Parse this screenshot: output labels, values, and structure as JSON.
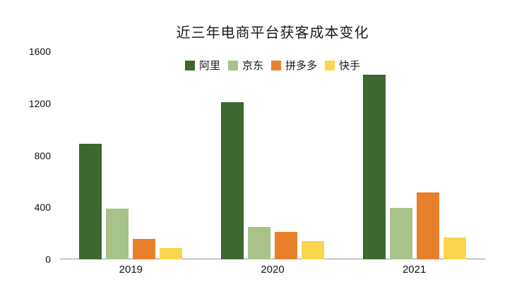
{
  "title": "近三年电商平台获客成本变化",
  "chart_data": {
    "type": "bar",
    "title": "近三年电商平台获客成本变化",
    "categories": [
      "2019",
      "2020",
      "2021"
    ],
    "series": [
      {
        "name": "阿里",
        "color": "#3d682f",
        "values": [
          890,
          1210,
          1420
        ]
      },
      {
        "name": "京东",
        "color": "#a7c389",
        "values": [
          390,
          250,
          395
        ]
      },
      {
        "name": "拼多多",
        "color": "#e8802b",
        "values": [
          160,
          210,
          515
        ]
      },
      {
        "name": "快手",
        "color": "#f9d64e",
        "values": [
          85,
          140,
          170
        ]
      }
    ],
    "xlabel": "",
    "ylabel": "",
    "ylim": [
      0,
      1600
    ],
    "yticks": [
      0,
      400,
      800,
      1200,
      1600
    ],
    "grid": false,
    "legend_position": "top-center",
    "axis_color": "#979797",
    "text_color": "#1a1a1a",
    "background_color": "#ffffff"
  }
}
